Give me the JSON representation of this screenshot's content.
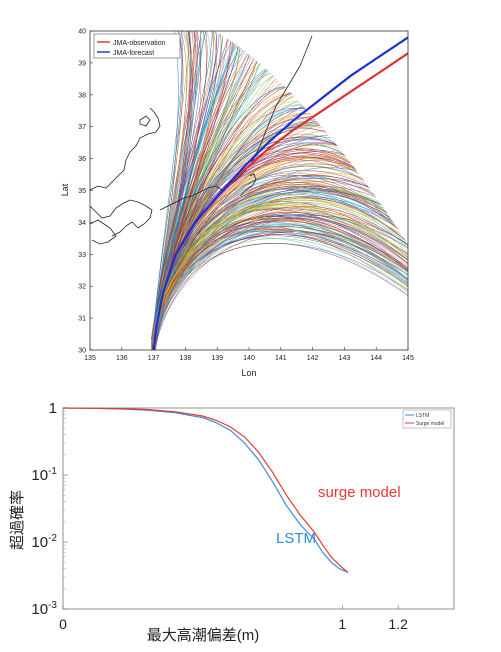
{
  "chart_data": [
    {
      "type": "line",
      "title": "",
      "xlabel": "Lon",
      "ylabel": "Lat",
      "xlim": [
        135,
        145
      ],
      "ylim": [
        30,
        40
      ],
      "x_ticks": [
        "135",
        "136",
        "137",
        "138",
        "139",
        "140",
        "141",
        "142",
        "143",
        "144",
        "145"
      ],
      "y_ticks": [
        "30",
        "31",
        "32",
        "33",
        "34",
        "35",
        "36",
        "37",
        "38",
        "39",
        "40"
      ],
      "grid": false,
      "legend_position": "top-left",
      "legend": [
        "JMA-observation",
        "JMA-forecast"
      ],
      "series": [
        {
          "name": "JMA-observation",
          "color": "#e03030",
          "x": [
            137.0,
            137.1,
            137.3,
            137.7,
            138.3,
            139.0,
            139.8,
            140.6,
            141.4,
            142.3,
            143.2,
            144.1,
            145.0
          ],
          "y": [
            30.0,
            30.8,
            31.8,
            33.0,
            34.0,
            34.8,
            35.6,
            36.3,
            36.9,
            37.5,
            38.1,
            38.7,
            39.3
          ]
        },
        {
          "name": "JMA-forecast",
          "color": "#1d2fd6",
          "x": [
            137.0,
            137.1,
            137.3,
            137.7,
            138.3,
            139.0,
            139.8,
            140.6,
            141.4,
            142.3,
            143.2,
            144.1,
            145.0
          ],
          "y": [
            30.0,
            30.8,
            31.8,
            33.0,
            34.0,
            34.8,
            35.7,
            36.5,
            37.2,
            37.9,
            38.6,
            39.2,
            39.8
          ]
        }
      ],
      "ensemble_count": 300,
      "ensemble_colors": [
        "#0072bd",
        "#d95319",
        "#edb120",
        "#7e2f8e",
        "#77ac30",
        "#4dbeee",
        "#a2142f"
      ]
    },
    {
      "type": "line",
      "title": "",
      "xlabel": "最大高潮偏差(m)",
      "ylabel": "超過確率",
      "xlim": [
        0,
        1.4
      ],
      "ylim": [
        0.001,
        1
      ],
      "y_scale": "log",
      "x_ticks": [
        "0",
        "1",
        "1.2"
      ],
      "x_tick_values": [
        0,
        1,
        1.2
      ],
      "y_ticks": [
        {
          "mantissa": "1",
          "exponent": ""
        },
        {
          "mantissa": "10",
          "exponent": "-1"
        },
        {
          "mantissa": "10",
          "exponent": "-2"
        },
        {
          "mantissa": "10",
          "exponent": "-3"
        }
      ],
      "grid": false,
      "legend_position": "top-right",
      "legend": [
        "LSTM",
        "Surge model"
      ],
      "annotations": [
        {
          "text": "surge model",
          "color": "#e8392f"
        },
        {
          "text": "LSTM",
          "color": "#2b8fd6"
        }
      ],
      "series": [
        {
          "name": "LSTM",
          "color": "#3b8fd9",
          "x": [
            0.0,
            0.1,
            0.2,
            0.3,
            0.4,
            0.5,
            0.55,
            0.6,
            0.65,
            0.7,
            0.75,
            0.8,
            0.85,
            0.9,
            0.93,
            0.96,
            0.99,
            1.02
          ],
          "y": [
            1.0,
            0.99,
            0.97,
            0.93,
            0.85,
            0.72,
            0.6,
            0.46,
            0.3,
            0.17,
            0.08,
            0.035,
            0.018,
            0.011,
            0.007,
            0.005,
            0.004,
            0.0035
          ]
        },
        {
          "name": "Surge model",
          "color": "#e8392f",
          "x": [
            0.0,
            0.1,
            0.2,
            0.3,
            0.4,
            0.5,
            0.55,
            0.6,
            0.65,
            0.7,
            0.75,
            0.8,
            0.85,
            0.9,
            0.93,
            0.96,
            0.99,
            1.02
          ],
          "y": [
            1.0,
            0.99,
            0.98,
            0.95,
            0.88,
            0.76,
            0.65,
            0.52,
            0.37,
            0.22,
            0.11,
            0.05,
            0.025,
            0.014,
            0.009,
            0.006,
            0.0045,
            0.0035
          ]
        }
      ]
    }
  ]
}
